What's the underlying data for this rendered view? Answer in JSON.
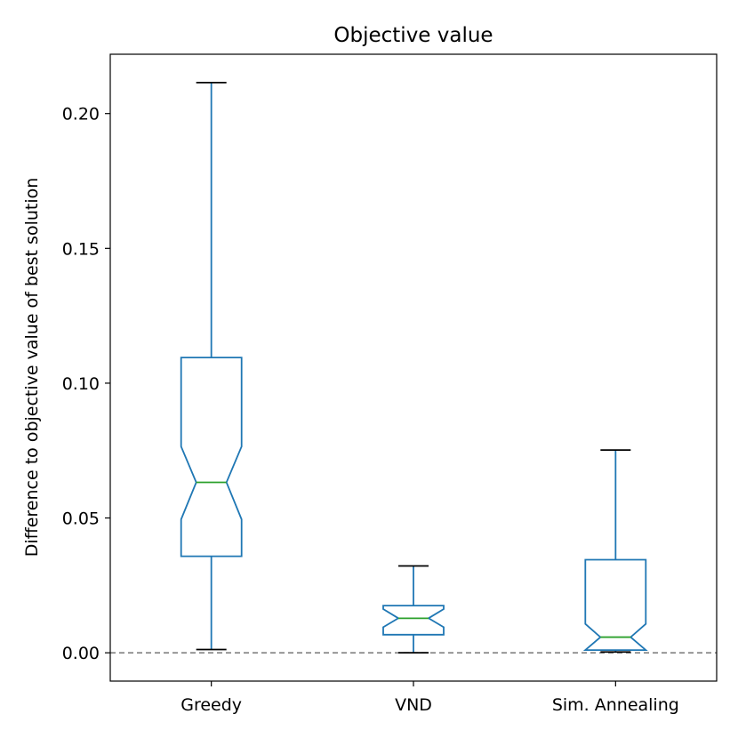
{
  "chart_data": {
    "type": "boxplot",
    "title": "Objective value",
    "xlabel": "",
    "ylabel": "Difference to objective value of best solution",
    "ylim": [
      -0.0105,
      0.222
    ],
    "yticks": [
      0.0,
      0.05,
      0.1,
      0.15,
      0.2
    ],
    "ytick_labels": [
      "0.00",
      "0.05",
      "0.10",
      "0.15",
      "0.20"
    ],
    "reference_line": {
      "y": 0.0,
      "style": "dashed"
    },
    "notched": true,
    "categories": [
      "Greedy",
      "VND",
      "Sim. Annealing"
    ],
    "boxes": [
      {
        "label": "Greedy",
        "whisker_low": 0.0012,
        "q1": 0.0358,
        "notch_low": 0.0495,
        "median": 0.0632,
        "notch_high": 0.0765,
        "q3": 0.1095,
        "whisker_high": 0.2115
      },
      {
        "label": "VND",
        "whisker_low": 0.0,
        "q1": 0.0067,
        "notch_low": 0.0095,
        "median": 0.0128,
        "notch_high": 0.0162,
        "q3": 0.0175,
        "whisker_high": 0.0322
      },
      {
        "label": "Sim. Annealing",
        "whisker_low": 0.0003,
        "q1": 0.001,
        "notch_low": 0.001,
        "median": 0.0058,
        "notch_high": 0.0107,
        "q3": 0.0345,
        "whisker_high": 0.0752
      }
    ],
    "colors": {
      "box": "#1f77b4",
      "median": "#2ca02c",
      "whisker_cap": "#000000",
      "reference": "#808080",
      "axes": "#000000"
    }
  }
}
